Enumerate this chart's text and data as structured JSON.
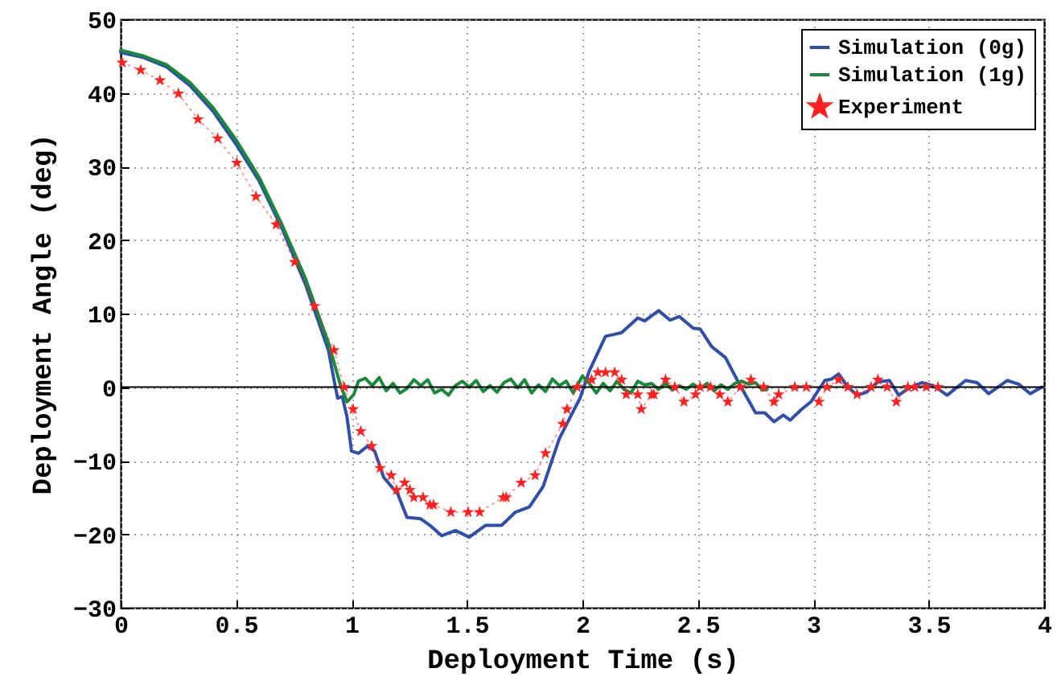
{
  "chart_data": {
    "type": "line",
    "xlabel": "Deployment Time (s)",
    "ylabel": "Deployment Angle (deg)",
    "xlim": [
      0,
      4
    ],
    "xticks": [
      0,
      0.5,
      1,
      1.5,
      2,
      2.5,
      3,
      3.5,
      4
    ],
    "ylim": [
      -30,
      50
    ],
    "yticks": [
      -30,
      -20,
      -10,
      0,
      10,
      20,
      30,
      40,
      50
    ],
    "grid": true,
    "legend": "top right",
    "ref_lines": [
      {
        "axis": "y",
        "value": 0,
        "color": "#000000",
        "line_style": "solid"
      }
    ],
    "series": [
      {
        "name": "Simulation (0g)",
        "color": "#2f4fa8",
        "line_style": "solid",
        "x": [
          0,
          0.1,
          0.2,
          0.3,
          0.4,
          0.5,
          0.6,
          0.7,
          0.8,
          0.9,
          0.93,
          0.94,
          0.96,
          0.98,
          1.0,
          1.03,
          1.07,
          1.1,
          1.14,
          1.2,
          1.24,
          1.3,
          1.34,
          1.39,
          1.45,
          1.51,
          1.58,
          1.65,
          1.71,
          1.77,
          1.83,
          1.9,
          1.965,
          1.99,
          2.03,
          2.1,
          2.17,
          2.24,
          2.27,
          2.33,
          2.38,
          2.42,
          2.48,
          2.51,
          2.56,
          2.62,
          2.68,
          2.75,
          2.79,
          2.83,
          2.87,
          2.9,
          2.95,
          2.99,
          3.05,
          3.08,
          3.11,
          3.15,
          3.19,
          3.23,
          3.28,
          3.33,
          3.37,
          3.42,
          3.47,
          3.52,
          3.58,
          3.66,
          3.71,
          3.76,
          3.84,
          3.89,
          3.94,
          3.99
        ],
        "values": [
          45.5,
          44.8,
          43.5,
          41,
          37.5,
          33,
          28,
          21.5,
          14,
          5,
          0,
          -1.5,
          -1.3,
          -4,
          -8.7,
          -9,
          -8,
          -8.7,
          -12.3,
          -14.5,
          -17.7,
          -17.9,
          -18.8,
          -20.2,
          -19.5,
          -20.4,
          -18.8,
          -18.8,
          -17,
          -16.3,
          -13.5,
          -7,
          -3,
          -1.5,
          2.2,
          6.9,
          7.4,
          9.4,
          9,
          10.4,
          9.1,
          9.6,
          8,
          7.9,
          5.5,
          4,
          0.4,
          -3.5,
          -3.5,
          -4.7,
          -3.8,
          -4.5,
          -3,
          -2,
          0.9,
          1.1,
          1.8,
          0,
          -1.1,
          -0.7,
          0.7,
          0.9,
          -1.1,
          0,
          0.6,
          0.2,
          -1.1,
          0.9,
          0.6,
          -0.9,
          0.9,
          0.4,
          -0.9,
          0
        ]
      },
      {
        "name": "Simulation (1g)",
        "color": "#1a8a3a",
        "line_style": "solid",
        "x": [
          0,
          0.1,
          0.2,
          0.3,
          0.4,
          0.5,
          0.6,
          0.7,
          0.8,
          0.9,
          0.95,
          0.98,
          1.01,
          1.03,
          1.06,
          1.09,
          1.12,
          1.15,
          1.18,
          1.21,
          1.24,
          1.27,
          1.3,
          1.33,
          1.36,
          1.39,
          1.42,
          1.45,
          1.48,
          1.51,
          1.54,
          1.57,
          1.6,
          1.63,
          1.66,
          1.69,
          1.72,
          1.75,
          1.78,
          1.81,
          1.84,
          1.87,
          1.9,
          1.93,
          1.96,
          2.0,
          2.03,
          2.06,
          2.09,
          2.12,
          2.15,
          2.18,
          2.21,
          2.24,
          2.27,
          2.3,
          2.33,
          2.36,
          2.39,
          2.42,
          2.45,
          2.48,
          2.51,
          2.54,
          2.57,
          2.6,
          2.63,
          2.66,
          2.69,
          2.72,
          2.75,
          2.78,
          2.8
        ],
        "values": [
          45.8,
          45,
          43.8,
          41.4,
          38,
          33.6,
          28.5,
          22,
          14.8,
          6,
          0.5,
          -2,
          -1,
          0.8,
          1.2,
          0.2,
          1.3,
          -0.5,
          0.5,
          -0.8,
          -0.2,
          1,
          0.2,
          1,
          -0.8,
          -0.3,
          -1.1,
          0.2,
          0.8,
          0,
          0.9,
          -0.6,
          0.2,
          -0.7,
          0.6,
          1.1,
          -0.1,
          1,
          -0.8,
          0.3,
          -0.6,
          1.1,
          0.2,
          0.8,
          -0.8,
          1.5,
          0.5,
          -0.8,
          0.5,
          -0.5,
          0.8,
          -0.3,
          -0.8,
          0.8,
          0.3,
          0.5,
          -0.3,
          0.5,
          -0.4,
          0.2,
          -0.3,
          0.4,
          -0.2,
          0.5,
          -0.5,
          0.3,
          -0.3,
          0.5,
          0.8,
          0.4,
          0.6,
          -0.4,
          -0.3
        ]
      },
      {
        "name": "Experiment",
        "color": "#ff2020",
        "line_style": "dotted",
        "marker": "star",
        "x": [
          0.007,
          0.087,
          0.17,
          0.25,
          0.335,
          0.42,
          0.503,
          0.586,
          0.674,
          0.754,
          0.84,
          0.924,
          0.968,
          1.007,
          1.04,
          1.087,
          1.124,
          1.172,
          1.195,
          1.23,
          1.253,
          1.27,
          1.31,
          1.34,
          1.355,
          1.43,
          1.505,
          1.555,
          1.657,
          1.67,
          1.735,
          1.795,
          1.84,
          1.915,
          1.933,
          1.977,
          2.04,
          2.067,
          2.1,
          2.14,
          2.17,
          2.19,
          2.24,
          2.255,
          2.3,
          2.31,
          2.36,
          2.4,
          2.44,
          2.49,
          2.51,
          2.555,
          2.595,
          2.63,
          2.685,
          2.73,
          2.785,
          2.83,
          2.85,
          2.92,
          2.97,
          3.025,
          3.06,
          3.11,
          3.15,
          3.19,
          3.25,
          3.28,
          3.32,
          3.36,
          3.41,
          3.44,
          3.49,
          3.54
        ],
        "values": [
          44.1,
          43.1,
          41.7,
          39.9,
          36.4,
          33.8,
          30.5,
          25.9,
          22.1,
          17,
          11,
          5,
          0,
          -3,
          -6,
          -8,
          -11,
          -12,
          -14,
          -13,
          -14,
          -15,
          -15,
          -16,
          -16,
          -17,
          -17,
          -17,
          -15,
          -15,
          -13,
          -12,
          -9,
          -5,
          -3,
          0,
          1,
          2,
          2,
          2,
          1,
          -1,
          -1,
          -3,
          -1,
          -1,
          1,
          0,
          -2,
          -1,
          0,
          0,
          -1,
          -2,
          0,
          1,
          0,
          -2,
          -1,
          0,
          0,
          -2,
          0,
          1,
          0,
          -1,
          0,
          1,
          0,
          -2,
          0,
          0,
          0,
          0
        ]
      }
    ]
  }
}
